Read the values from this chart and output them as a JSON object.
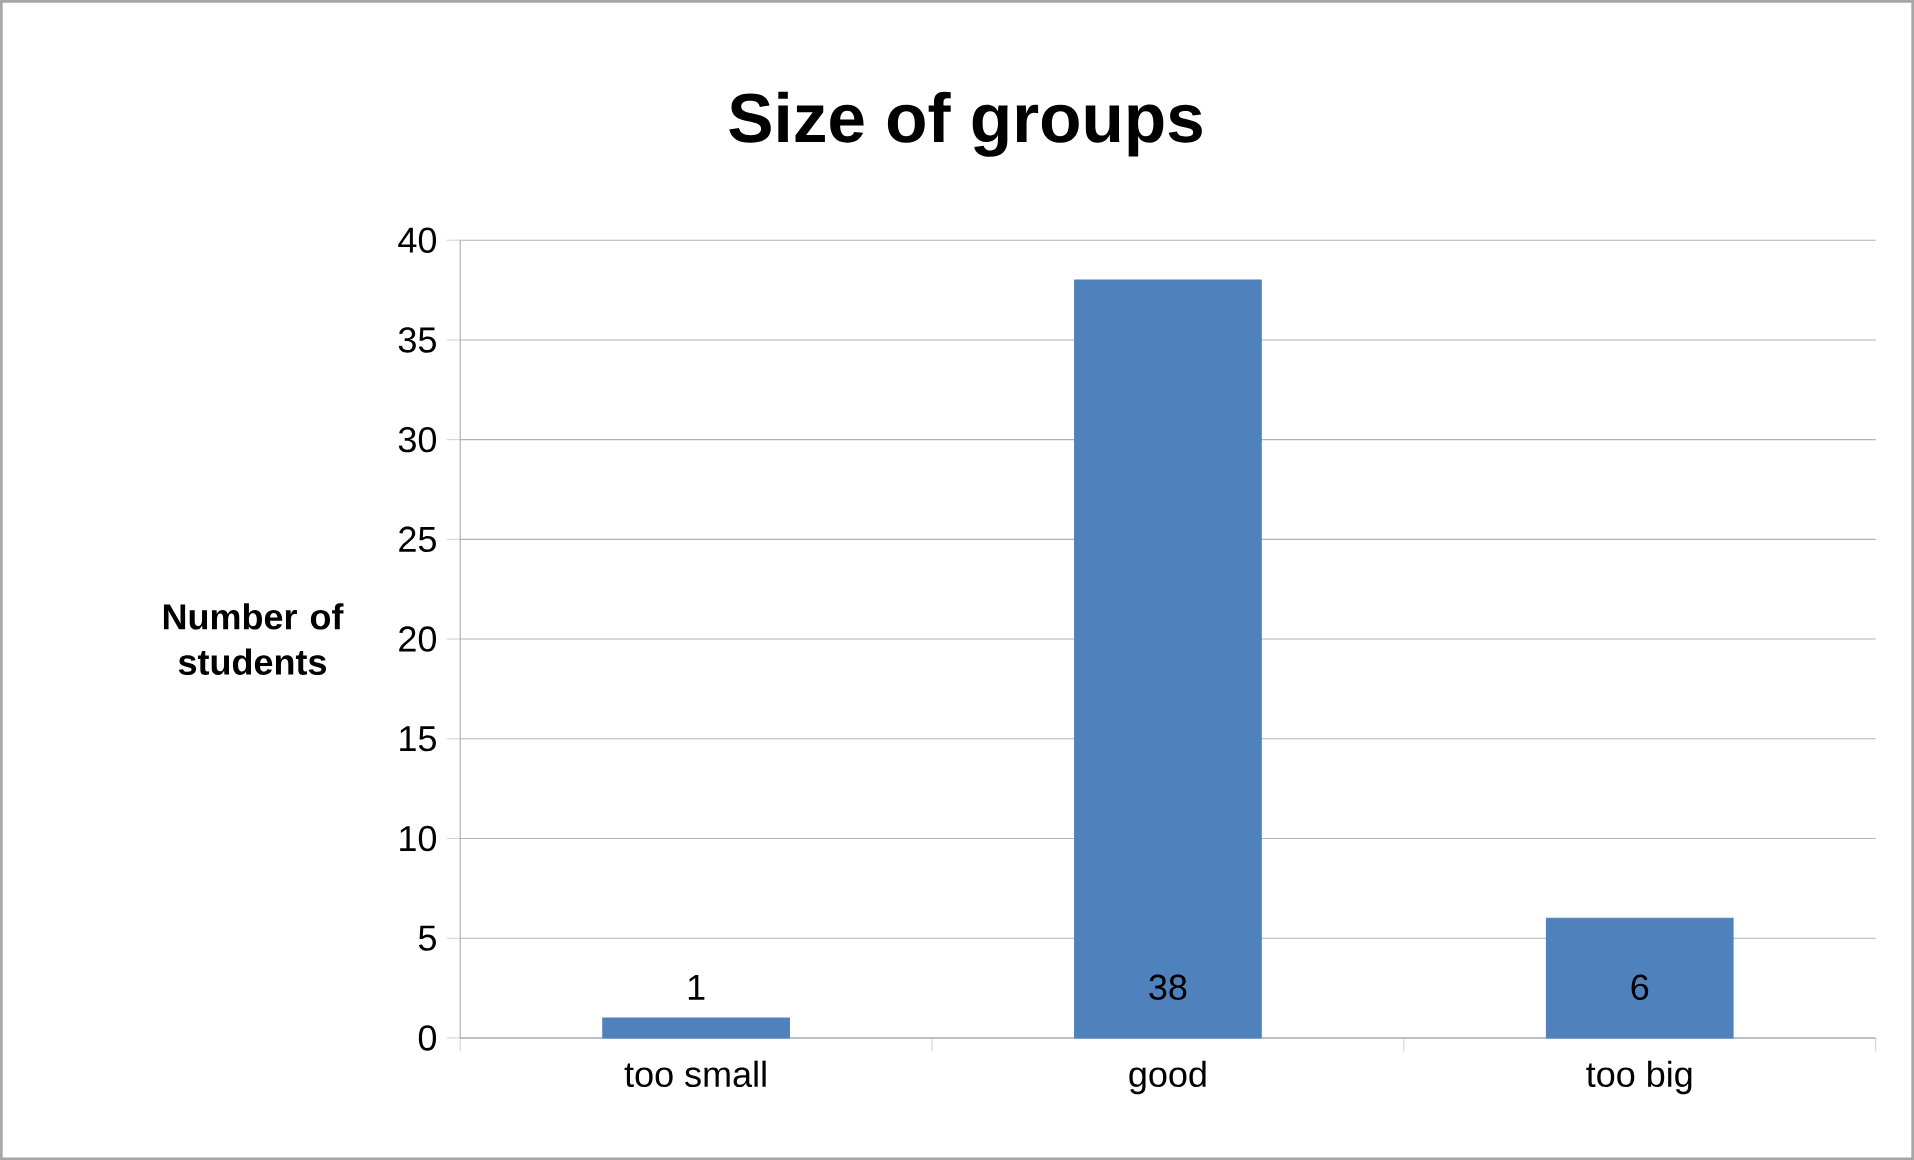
{
  "chart_data": {
    "type": "bar",
    "title": "Size of groups",
    "ylabel": "Number of students",
    "categories": [
      "too small",
      "good",
      "too big"
    ],
    "values": [
      1,
      38,
      6
    ],
    "color": "#4f81bd",
    "ylim": [
      0,
      40
    ],
    "yticks": [
      0,
      5,
      10,
      15,
      20,
      25,
      30,
      35,
      40
    ],
    "grid": "y",
    "data_labels": true
  }
}
